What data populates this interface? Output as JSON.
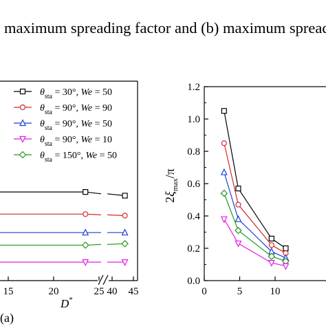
{
  "figure_title": "maximum spreading factor and (b) maximum spread",
  "panel_label": "(a)",
  "chart_data": [
    {
      "panel": "a",
      "type": "line",
      "xlabel": "D*",
      "x_ticks": [
        "15",
        "20",
        "25",
        "40",
        "45"
      ],
      "legend": [
        {
          "theta": "30°",
          "We": "50",
          "marker": "square",
          "color": "#000000"
        },
        {
          "theta": "90°",
          "We": "90",
          "marker": "circle",
          "color": "#d62728"
        },
        {
          "theta": "90°",
          "We": "50",
          "marker": "triangle-up",
          "color": "#1f3fd6"
        },
        {
          "theta": "90°",
          "We": "10",
          "marker": "triangle-down",
          "color": "#e21ee2"
        },
        {
          "theta": "150°",
          "We": "50",
          "marker": "diamond",
          "color": "#1f9a1f"
        }
      ],
      "legend_labels": {
        "theta_symbol": "θ",
        "theta_sub": "sta",
        "eq": " = ",
        "we_label": "We"
      },
      "series": [
        {
          "color": "#000000",
          "marker": "square",
          "x": [
            23.5,
            43
          ],
          "y": [
            0.27,
            0.265
          ]
        },
        {
          "color": "#d62728",
          "marker": "circle",
          "x": [
            23.5,
            43
          ],
          "y": [
            0.24,
            0.238
          ]
        },
        {
          "color": "#1f3fd6",
          "marker": "triangle-up",
          "x": [
            23.5,
            43
          ],
          "y": [
            0.215,
            0.215
          ]
        },
        {
          "color": "#1f9a1f",
          "marker": "diamond",
          "x": [
            23.5,
            43
          ],
          "y": [
            0.198,
            0.2
          ]
        },
        {
          "color": "#e21ee2",
          "marker": "triangle-down",
          "x": [
            23.5,
            43
          ],
          "y": [
            0.175,
            0.175
          ]
        }
      ]
    },
    {
      "panel": "b",
      "type": "line",
      "ylabel": "2ξmax/π",
      "ylabel_parts": {
        "prefix": "2",
        "symbol": "ξ",
        "sub": "max",
        "suffix": "/π"
      },
      "ylim": [
        0,
        1.2
      ],
      "y_ticks": [
        "0.0",
        "0.2",
        "0.4",
        "0.6",
        "0.8",
        "1.0",
        "1.2"
      ],
      "xlim": [
        0,
        11.5
      ],
      "x_ticks": [
        "0",
        "5",
        "10"
      ],
      "series": [
        {
          "color": "#000000",
          "marker": "square",
          "x": [
            2.8,
            4.8,
            9.5,
            11.5
          ],
          "y": [
            1.05,
            0.57,
            0.26,
            0.2
          ]
        },
        {
          "color": "#d62728",
          "marker": "circle",
          "x": [
            2.8,
            4.8,
            9.5,
            11.5
          ],
          "y": [
            0.85,
            0.47,
            0.22,
            0.17
          ]
        },
        {
          "color": "#1f3fd6",
          "marker": "triangle-up",
          "x": [
            2.8,
            4.8,
            9.5,
            11.5
          ],
          "y": [
            0.67,
            0.38,
            0.18,
            0.14
          ]
        },
        {
          "color": "#1f9a1f",
          "marker": "diamond",
          "x": [
            2.8,
            4.8,
            9.5,
            11.5
          ],
          "y": [
            0.54,
            0.31,
            0.15,
            0.12
          ]
        },
        {
          "color": "#e21ee2",
          "marker": "triangle-down",
          "x": [
            2.8,
            4.8,
            9.5,
            11.5
          ],
          "y": [
            0.38,
            0.23,
            0.11,
            0.09
          ]
        }
      ]
    }
  ]
}
